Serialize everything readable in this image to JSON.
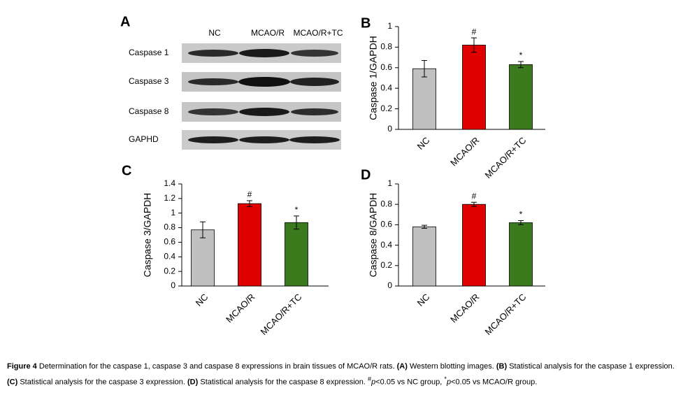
{
  "blot": {
    "panel": "A",
    "lanes": [
      "NC",
      "MCAO/R",
      "MCAO/R+TC"
    ],
    "rows": [
      "Caspase 1",
      "Caspase 3",
      "Caspase 8",
      "GAPHD"
    ]
  },
  "chart_data": [
    {
      "type": "bar",
      "panel": "B",
      "ylabel": "Caspase 1/GAPDH",
      "categories": [
        "NC",
        "MCAO/R",
        "MCAO/R+TC"
      ],
      "values": [
        0.59,
        0.82,
        0.63
      ],
      "errors": [
        0.08,
        0.07,
        0.03
      ],
      "colors": [
        "#c0c0c0",
        "#e00000",
        "#3b7b1e"
      ],
      "annotations": [
        null,
        "#",
        "*"
      ],
      "ylim": [
        0,
        1
      ],
      "yticks": [
        0,
        0.2,
        0.4,
        0.6,
        0.8,
        1
      ],
      "grid": false
    },
    {
      "type": "bar",
      "panel": "C",
      "ylabel": "Caspase 3/GAPDH",
      "categories": [
        "NC",
        "MCAO/R",
        "MCAO/R+TC"
      ],
      "values": [
        0.77,
        1.13,
        0.87
      ],
      "errors": [
        0.11,
        0.04,
        0.09
      ],
      "colors": [
        "#c0c0c0",
        "#e00000",
        "#3b7b1e"
      ],
      "annotations": [
        null,
        "#",
        "*"
      ],
      "ylim": [
        0,
        1.4
      ],
      "yticks": [
        0,
        0.2,
        0.4,
        0.6,
        0.8,
        1,
        1.2,
        1.4
      ],
      "grid": false
    },
    {
      "type": "bar",
      "panel": "D",
      "ylabel": "Caspase 8/GAPDH",
      "categories": [
        "NC",
        "MCAO/R",
        "MCAO/R+TC"
      ],
      "values": [
        0.58,
        0.8,
        0.62
      ],
      "errors": [
        0.015,
        0.02,
        0.02
      ],
      "colors": [
        "#c0c0c0",
        "#e00000",
        "#3b7b1e"
      ],
      "annotations": [
        null,
        "#",
        "*"
      ],
      "ylim": [
        0,
        1
      ],
      "yticks": [
        0,
        0.2,
        0.4,
        0.6,
        0.8,
        1
      ],
      "grid": false
    }
  ],
  "caption": {
    "label": "Figure 4",
    "segments": [
      "Determination for the caspase 1, caspase 3 and caspase 8 expressions in brain tissues of MCAO/R rats. ",
      "(A)",
      " Western blotting images. ",
      "(B)",
      " Statistical analysis for the caspase 1 expression. ",
      "(C)",
      " Statistical analysis for the caspase 3 expression. ",
      "(D)",
      " Statistical analysis for the caspase 8 expression. ",
      "#",
      "p",
      "<0.05 vs NC group, ",
      "*",
      "p",
      "<0.05 vs MCAO/R group."
    ]
  }
}
